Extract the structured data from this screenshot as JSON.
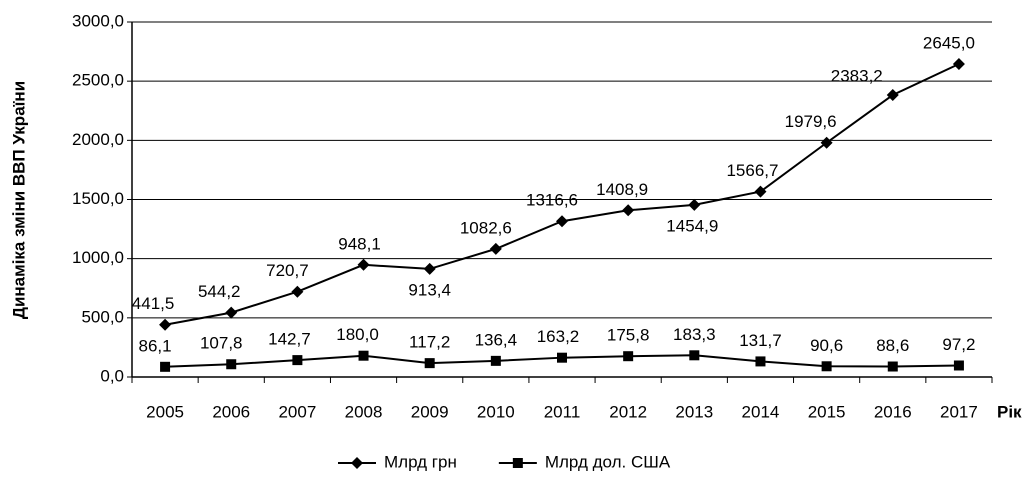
{
  "chart_data": {
    "type": "line",
    "categories": [
      "2005",
      "2006",
      "2007",
      "2008",
      "2009",
      "2010",
      "2011",
      "2012",
      "2013",
      "2014",
      "2015",
      "2016",
      "2017"
    ],
    "series": [
      {
        "name": "Млрд грн",
        "color": "#000000",
        "marker": "diamond",
        "values": [
          441.5,
          544.2,
          720.7,
          948.1,
          913.4,
          1082.6,
          1316.6,
          1408.9,
          1454.9,
          1566.7,
          1979.6,
          2383.2,
          2645.0
        ],
        "value_labels": [
          "441,5",
          "544,2",
          "720,7",
          "948,1",
          "913,4",
          "1082,6",
          "1316,6",
          "1408,9",
          "1454,9",
          "1566,7",
          "1979,6",
          "2383,2",
          "2645,0"
        ]
      },
      {
        "name": "Млрд дол. США",
        "color": "#000000",
        "marker": "square",
        "values": [
          86.1,
          107.8,
          142.7,
          180.0,
          117.2,
          136.4,
          163.2,
          175.8,
          183.3,
          131.7,
          90.6,
          88.6,
          97.2
        ],
        "value_labels": [
          "86,1",
          "107,8",
          "142,7",
          "180,0",
          "117,2",
          "136,4",
          "163,2",
          "175,8",
          "183,3",
          "131,7",
          "90,6",
          "88,6",
          "97,2"
        ]
      }
    ],
    "ylim": [
      0,
      3000
    ],
    "yticks": [
      {
        "value": 0,
        "label": "0,0"
      },
      {
        "value": 500,
        "label": "500,0"
      },
      {
        "value": 1000,
        "label": "1000,0"
      },
      {
        "value": 1500,
        "label": "1500,0"
      },
      {
        "value": 2000,
        "label": "2000,0"
      },
      {
        "value": 2500,
        "label": "2500,0"
      },
      {
        "value": 3000,
        "label": "3000,0"
      }
    ],
    "y_label": "Динаміка зміни ВВП України",
    "x_label": "Рік",
    "grid": true,
    "legend": "bottom"
  }
}
